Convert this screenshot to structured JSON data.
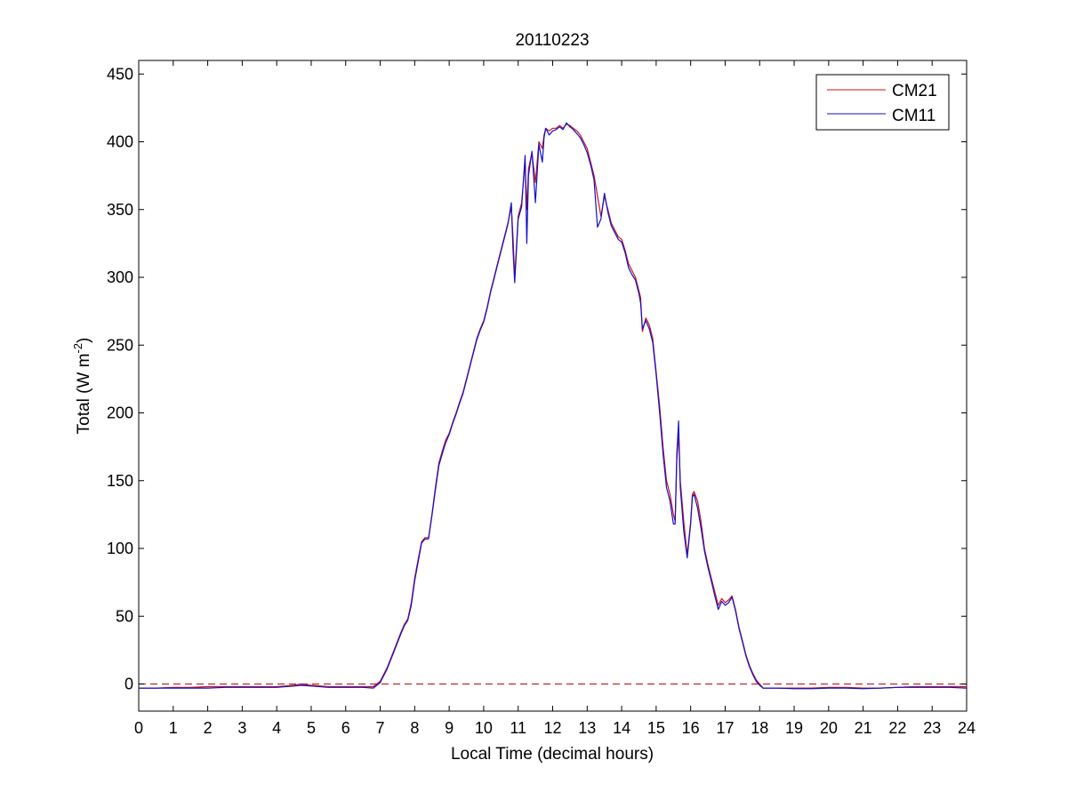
{
  "chart_data": {
    "type": "line",
    "title": "20110223",
    "xlabel": "Local Time (decimal hours)",
    "ylabel": "Total (W m",
    "ylabel_superscript": "-2",
    "ylabel_suffix": ")",
    "xlim": [
      0,
      24
    ],
    "ylim": [
      -20,
      460
    ],
    "xticks": [
      0,
      1,
      2,
      3,
      4,
      5,
      6,
      7,
      8,
      9,
      10,
      11,
      12,
      13,
      14,
      15,
      16,
      17,
      18,
      19,
      20,
      21,
      22,
      23,
      24
    ],
    "yticks": [
      0,
      50,
      100,
      150,
      200,
      250,
      300,
      350,
      400,
      450
    ],
    "grid": false,
    "legend_position": "top-right",
    "reference_line": {
      "y": 0,
      "style": "dashed",
      "color": "#c0262c"
    },
    "colors": {
      "CM21": "#cc1111",
      "CM11": "#1111cc"
    },
    "series": [
      {
        "name": "CM21",
        "color": "#cc1111",
        "x": [
          0,
          0.5,
          1,
          1.5,
          2,
          2.5,
          3,
          3.5,
          4,
          4.5,
          4.7,
          5,
          5.5,
          6,
          6.5,
          6.8,
          7.0,
          7.2,
          7.4,
          7.6,
          7.7,
          7.8,
          7.9,
          8.0,
          8.1,
          8.2,
          8.3,
          8.4,
          8.5,
          8.6,
          8.7,
          8.8,
          8.9,
          9.0,
          9.1,
          9.2,
          9.3,
          9.4,
          9.5,
          9.6,
          9.7,
          9.8,
          9.9,
          10.0,
          10.1,
          10.2,
          10.3,
          10.4,
          10.5,
          10.6,
          10.7,
          10.8,
          10.85,
          10.9,
          11.0,
          11.1,
          11.2,
          11.25,
          11.3,
          11.4,
          11.5,
          11.6,
          11.7,
          11.75,
          11.8,
          11.9,
          12.0,
          12.1,
          12.2,
          12.3,
          12.4,
          12.5,
          12.6,
          12.7,
          12.8,
          12.9,
          13.0,
          13.1,
          13.2,
          13.3,
          13.4,
          13.5,
          13.6,
          13.7,
          13.8,
          13.9,
          14.0,
          14.1,
          14.2,
          14.3,
          14.4,
          14.5,
          14.55,
          14.6,
          14.7,
          14.8,
          14.9,
          15.0,
          15.1,
          15.2,
          15.3,
          15.4,
          15.5,
          15.55,
          15.6,
          15.65,
          15.7,
          15.8,
          15.9,
          16.0,
          16.05,
          16.1,
          16.2,
          16.3,
          16.4,
          16.5,
          16.6,
          16.7,
          16.8,
          16.9,
          17.0,
          17.1,
          17.2,
          17.3,
          17.4,
          17.5,
          17.6,
          17.7,
          17.8,
          17.9,
          18.0,
          18.1,
          18.5,
          19,
          19.5,
          20,
          20.5,
          21,
          21.5,
          22,
          22.5,
          23,
          23.5,
          24
        ],
        "values": [
          -3,
          -3,
          -2.5,
          -2.5,
          -2,
          -2,
          -2,
          -2,
          -2,
          -1,
          0,
          -1,
          -2,
          -2,
          -2,
          -2,
          2,
          12,
          25,
          38,
          44,
          48,
          60,
          78,
          92,
          105,
          108,
          108,
          125,
          145,
          163,
          172,
          180,
          185,
          193,
          200,
          208,
          215,
          225,
          235,
          245,
          255,
          262,
          268,
          278,
          290,
          300,
          310,
          320,
          330,
          340,
          352,
          330,
          300,
          345,
          355,
          385,
          350,
          380,
          392,
          370,
          400,
          395,
          405,
          410,
          408,
          410,
          410,
          412,
          410,
          413,
          412,
          410,
          408,
          405,
          400,
          395,
          385,
          375,
          360,
          345,
          360,
          350,
          340,
          335,
          330,
          328,
          320,
          310,
          305,
          300,
          290,
          285,
          260,
          270,
          265,
          255,
          230,
          205,
          175,
          150,
          140,
          125,
          120,
          165,
          185,
          150,
          120,
          95,
          120,
          140,
          142,
          135,
          120,
          100,
          88,
          78,
          68,
          58,
          63,
          60,
          62,
          65,
          55,
          42,
          32,
          22,
          14,
          8,
          3,
          0,
          -3,
          -3,
          -3,
          -3,
          -2.5,
          -2.5,
          -3,
          -3,
          -2.5,
          -2,
          -2,
          -2,
          -2
        ]
      },
      {
        "name": "CM11",
        "color": "#1111cc",
        "x": [
          0,
          0.5,
          1,
          1.5,
          2,
          2.5,
          3,
          3.5,
          4,
          4.5,
          4.7,
          5,
          5.5,
          6,
          6.5,
          6.8,
          7.0,
          7.2,
          7.4,
          7.6,
          7.7,
          7.8,
          7.9,
          8.0,
          8.1,
          8.2,
          8.3,
          8.4,
          8.5,
          8.6,
          8.7,
          8.8,
          8.9,
          9.0,
          9.1,
          9.2,
          9.3,
          9.4,
          9.5,
          9.6,
          9.7,
          9.8,
          9.9,
          10.0,
          10.1,
          10.2,
          10.3,
          10.4,
          10.5,
          10.6,
          10.7,
          10.8,
          10.85,
          10.9,
          11.0,
          11.1,
          11.2,
          11.25,
          11.3,
          11.4,
          11.5,
          11.6,
          11.7,
          11.75,
          11.8,
          11.9,
          12.0,
          12.1,
          12.2,
          12.3,
          12.4,
          12.5,
          12.6,
          12.7,
          12.8,
          12.9,
          13.0,
          13.1,
          13.2,
          13.3,
          13.4,
          13.5,
          13.6,
          13.7,
          13.8,
          13.9,
          14.0,
          14.1,
          14.2,
          14.3,
          14.4,
          14.5,
          14.55,
          14.6,
          14.7,
          14.8,
          14.9,
          15.0,
          15.1,
          15.2,
          15.3,
          15.4,
          15.5,
          15.55,
          15.6,
          15.65,
          15.7,
          15.8,
          15.9,
          16.0,
          16.05,
          16.1,
          16.2,
          16.3,
          16.4,
          16.5,
          16.6,
          16.7,
          16.8,
          16.9,
          17.0,
          17.1,
          17.2,
          17.3,
          17.4,
          17.5,
          17.6,
          17.7,
          17.8,
          17.9,
          18.0,
          18.1,
          18.5,
          19,
          19.5,
          20,
          20.5,
          21,
          21.5,
          22,
          22.5,
          23,
          23.5,
          24
        ],
        "values": [
          -3,
          -3,
          -3,
          -3,
          -3,
          -2.5,
          -2.5,
          -2.5,
          -2.5,
          -1.5,
          -1,
          -1.5,
          -2.5,
          -2.5,
          -2.5,
          -3,
          1,
          11,
          24,
          37,
          43,
          47,
          58,
          76,
          90,
          104,
          107,
          107,
          124,
          143,
          161,
          170,
          178,
          184,
          192,
          199,
          207,
          214,
          224,
          234,
          244,
          254,
          261,
          267,
          277,
          289,
          299,
          309,
          319,
          329,
          339,
          355,
          320,
          296,
          343,
          352,
          390,
          325,
          375,
          393,
          355,
          398,
          385,
          403,
          410,
          405,
          408,
          409,
          411,
          409,
          414,
          411,
          409,
          406,
          403,
          398,
          392,
          383,
          372,
          337,
          343,
          362,
          348,
          338,
          333,
          328,
          326,
          318,
          307,
          302,
          298,
          288,
          281,
          262,
          268,
          262,
          252,
          228,
          200,
          170,
          145,
          135,
          118,
          118,
          170,
          194,
          145,
          113,
          93,
          118,
          138,
          140,
          130,
          115,
          98,
          86,
          76,
          65,
          55,
          61,
          58,
          60,
          64,
          54,
          41,
          31,
          21,
          13,
          7,
          2,
          -1,
          -3,
          -3,
          -3.5,
          -3.5,
          -3,
          -3,
          -3.5,
          -3,
          -2.5,
          -2.5,
          -2.5,
          -2.5,
          -3
        ]
      }
    ]
  }
}
